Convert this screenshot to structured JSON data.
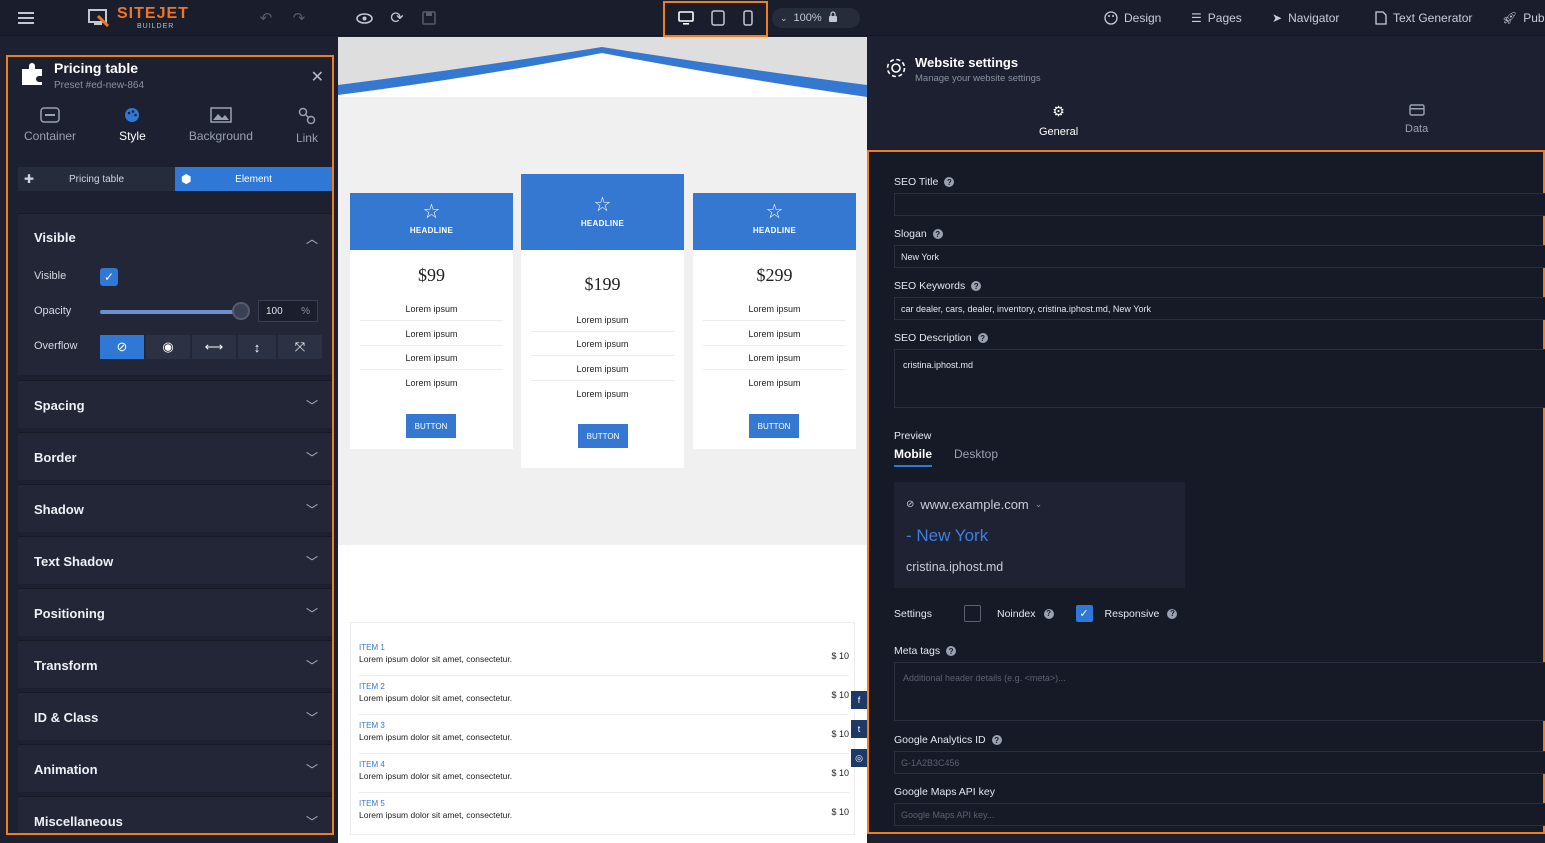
{
  "topbar": {
    "logo_main": "SITEJET",
    "logo_sub": "BUILDER",
    "zoom": "100%",
    "nav": [
      "Design",
      "Pages",
      "Navigator",
      "Text Generator",
      "Pub"
    ]
  },
  "left_panel": {
    "title": "Pricing table",
    "subtitle": "Preset #ed-new-864",
    "tabs": [
      "Container",
      "Style",
      "Background",
      "Link"
    ],
    "active_tab": "Style",
    "segments": [
      "Pricing table",
      "Element"
    ],
    "visible_section": {
      "title": "Visible",
      "visible_label": "Visible",
      "opacity_label": "Opacity",
      "opacity_value": "100",
      "opacity_unit": "%",
      "overflow_label": "Overflow"
    },
    "sections": [
      "Spacing",
      "Border",
      "Shadow",
      "Text Shadow",
      "Positioning",
      "Transform",
      "ID & Class",
      "Animation",
      "Miscellaneous"
    ]
  },
  "canvas": {
    "cards": [
      {
        "headline": "HEADLINE",
        "price": "$99",
        "items": [
          "Lorem ipsum",
          "Lorem ipsum",
          "Lorem ipsum",
          "Lorem ipsum"
        ],
        "button": "BUTTON"
      },
      {
        "headline": "HEADLINE",
        "price": "$199",
        "items": [
          "Lorem ipsum",
          "Lorem ipsum",
          "Lorem ipsum",
          "Lorem ipsum"
        ],
        "button": "BUTTON"
      },
      {
        "headline": "HEADLINE",
        "price": "$299",
        "items": [
          "Lorem ipsum",
          "Lorem ipsum",
          "Lorem ipsum",
          "Lorem ipsum"
        ],
        "button": "BUTTON"
      }
    ],
    "items": [
      {
        "name": "ITEM 1",
        "desc": "Lorem ipsum dolor sit amet, consectetur.",
        "price": "$ 10"
      },
      {
        "name": "ITEM 2",
        "desc": "Lorem ipsum dolor sit amet, consectetur.",
        "price": "$ 10"
      },
      {
        "name": "ITEM 3",
        "desc": "Lorem ipsum dolor sit amet, consectetur.",
        "price": "$ 10"
      },
      {
        "name": "ITEM 4",
        "desc": "Lorem ipsum dolor sit amet, consectetur.",
        "price": "$ 10"
      },
      {
        "name": "ITEM 5",
        "desc": "Lorem ipsum dolor sit amet, consectetur.",
        "price": "$ 10"
      }
    ]
  },
  "right_panel": {
    "title": "Website settings",
    "subtitle": "Manage your website settings",
    "tabs": [
      "General",
      "Data"
    ],
    "active_tab": "General",
    "seo_title_label": "SEO Title",
    "seo_title_value": "",
    "slogan_label": "Slogan",
    "slogan_value": "New York",
    "keywords_label": "SEO Keywords",
    "keywords_value": "car dealer, cars, dealer, inventory, cristina.iphost.md, New York",
    "description_label": "SEO Description",
    "description_value": "cristina.iphost.md",
    "preview_label": "Preview",
    "preview_tabs": [
      "Mobile",
      "Desktop"
    ],
    "preview_url": "www.example.com",
    "preview_title": "- New York",
    "preview_desc": "cristina.iphost.md",
    "settings_label": "Settings",
    "noindex_label": "Noindex",
    "responsive_label": "Responsive",
    "meta_label": "Meta tags",
    "meta_placeholder": "Additional header details (e.g. <meta>)...",
    "ga_label": "Google Analytics ID",
    "ga_placeholder": "G-1A2B3C456",
    "maps_label": "Google Maps API key",
    "maps_placeholder": "Google Maps API key..."
  },
  "colors": {
    "accent": "#2f78d6",
    "highlight": "#ef7e1e",
    "card_blue": "#3478d1"
  }
}
